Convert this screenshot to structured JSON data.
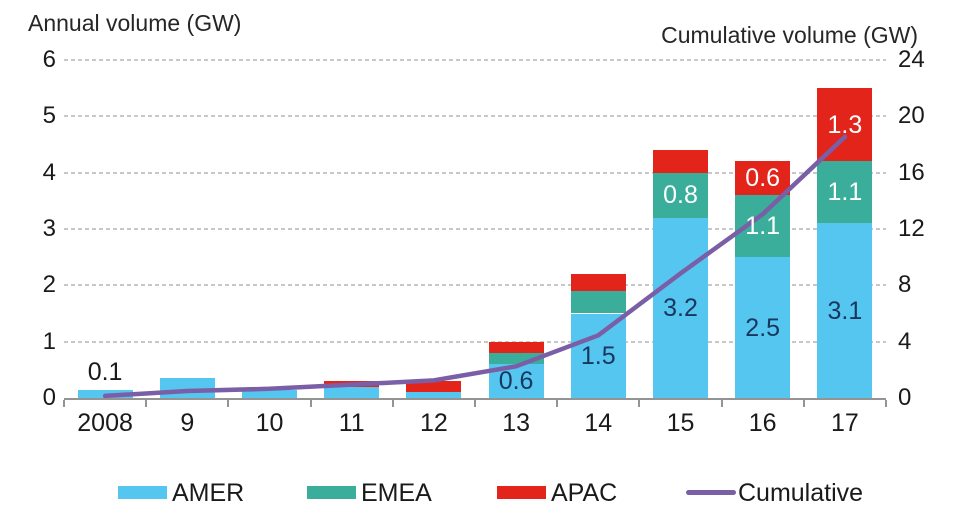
{
  "colors": {
    "amer": "#55C6F0",
    "emea": "#3BAE9B",
    "apac": "#E2241B",
    "cumulative": "#7B5FA6",
    "grid": "#C8C8C8",
    "axis": "#949494",
    "label_black": "#1a1a1a",
    "label_dark": "#17375E",
    "label_white": "#FFFFFF"
  },
  "legend": {
    "items": [
      {
        "label": "AMER",
        "swatch": "box",
        "color_key": "amer"
      },
      {
        "label": "EMEA",
        "swatch": "box",
        "color_key": "emea"
      },
      {
        "label": "APAC",
        "swatch": "box",
        "color_key": "apac"
      },
      {
        "label": "Cumulative",
        "swatch": "line",
        "color_key": "cumulative"
      }
    ]
  },
  "chart_data": {
    "type": "bar",
    "subtype": "stacked-columns-with-cumulative-line",
    "categories": [
      "2008",
      "9",
      "10",
      "11",
      "12",
      "13",
      "14",
      "15",
      "16",
      "17"
    ],
    "series": [
      {
        "name": "AMER",
        "color_key": "amer",
        "values": [
          0.15,
          0.35,
          0.15,
          0.2,
          0.1,
          0.6,
          1.5,
          3.2,
          2.5,
          3.1
        ]
      },
      {
        "name": "EMEA",
        "color_key": "emea",
        "values": [
          0,
          0,
          0,
          0,
          0,
          0.2,
          0.4,
          0.8,
          1.1,
          1.1
        ]
      },
      {
        "name": "APAC",
        "color_key": "apac",
        "values": [
          0,
          0,
          0,
          0.1,
          0.2,
          0.2,
          0.3,
          0.4,
          0.6,
          1.3
        ]
      }
    ],
    "line_series": {
      "name": "Cumulative",
      "axis": "right",
      "values": [
        0.15,
        0.5,
        0.65,
        0.95,
        1.25,
        2.25,
        4.45,
        8.85,
        13.05,
        18.55
      ]
    },
    "bar_labels": [
      {
        "category": "2008",
        "series": "AMER",
        "text": "0.1",
        "placement": "above",
        "style": "black"
      },
      {
        "category": "13",
        "series": "AMER",
        "text": "0.6",
        "placement": "inside",
        "style": "dark"
      },
      {
        "category": "14",
        "series": "AMER",
        "text": "1.5",
        "placement": "inside",
        "style": "dark"
      },
      {
        "category": "15",
        "series": "AMER",
        "text": "3.2",
        "placement": "inside",
        "style": "dark"
      },
      {
        "category": "15",
        "series": "EMEA",
        "text": "0.8",
        "placement": "inside",
        "style": "white"
      },
      {
        "category": "16",
        "series": "AMER",
        "text": "2.5",
        "placement": "inside",
        "style": "dark"
      },
      {
        "category": "16",
        "series": "EMEA",
        "text": "1.1",
        "placement": "inside",
        "style": "white"
      },
      {
        "category": "16",
        "series": "APAC",
        "text": "0.6",
        "placement": "inside",
        "style": "white"
      },
      {
        "category": "17",
        "series": "AMER",
        "text": "3.1",
        "placement": "inside",
        "style": "dark"
      },
      {
        "category": "17",
        "series": "EMEA",
        "text": "1.1",
        "placement": "inside",
        "style": "white"
      },
      {
        "category": "17",
        "series": "APAC",
        "text": "1.3",
        "placement": "inside",
        "style": "white"
      }
    ],
    "left_axis": {
      "title": "Annual volume  (GW)",
      "min": 0,
      "max": 6,
      "ticks": [
        "0",
        "1",
        "2",
        "3",
        "4",
        "5",
        "6"
      ]
    },
    "right_axis": {
      "title": "Cumulative  volume  (GW)",
      "min": 0,
      "max": 24,
      "ticks": [
        "0",
        "4",
        "8",
        "12",
        "16",
        "20",
        "24"
      ]
    },
    "grid": "horizontal-dashed",
    "legend_position": "bottom"
  }
}
